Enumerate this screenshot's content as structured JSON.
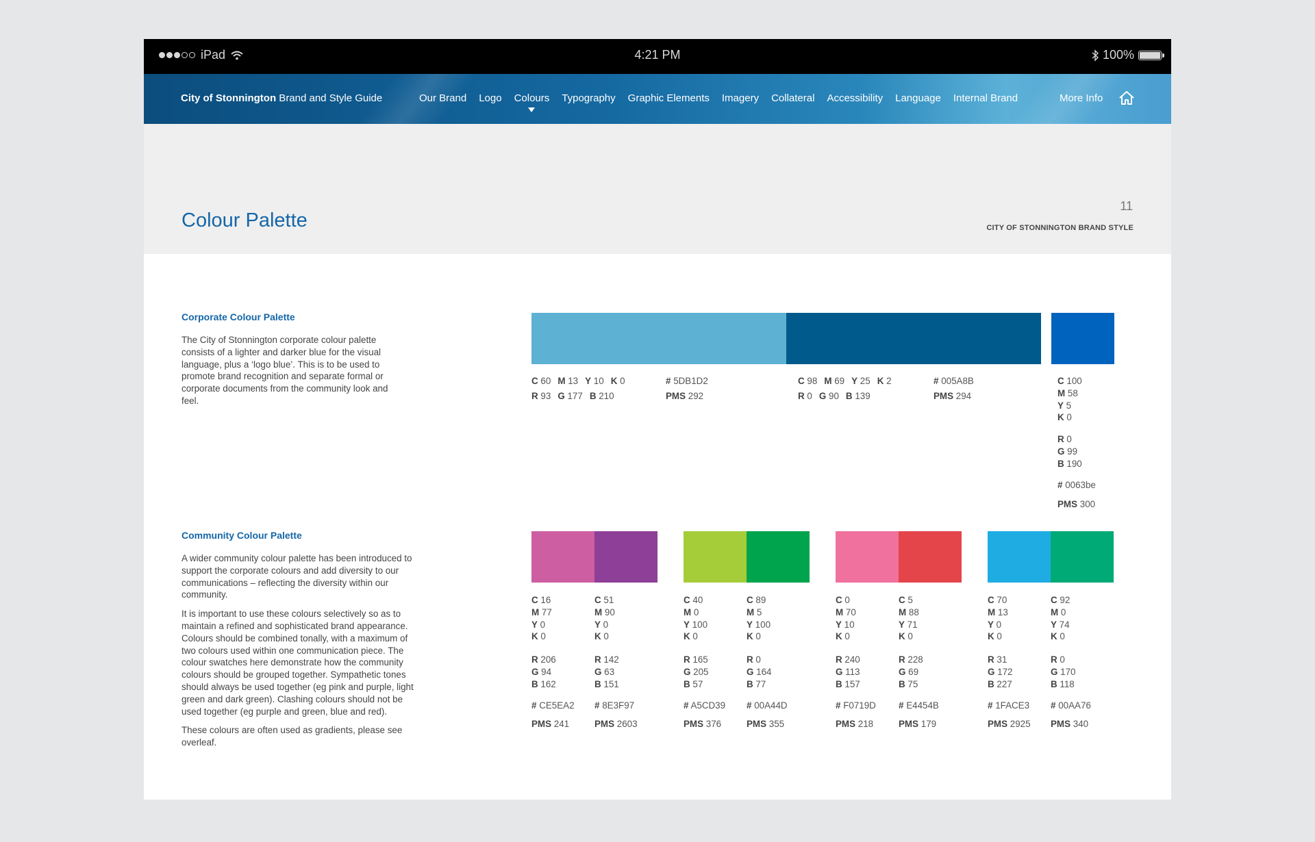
{
  "status_bar": {
    "carrier": "iPad",
    "time": "4:21 PM",
    "battery": "100%",
    "signal_bars": 3
  },
  "nav": {
    "brand_bold": "City of Stonnington",
    "brand_rest": " Brand and Style Guide",
    "items": [
      "Our Brand",
      "Logo",
      "Colours",
      "Typography",
      "Graphic Elements",
      "Imagery",
      "Collateral",
      "Accessibility",
      "Language",
      "Internal Brand"
    ],
    "active_item": "Colours",
    "more": "More Info",
    "home_icon": "home-icon"
  },
  "header": {
    "title": "Colour Palette",
    "page_number": "11",
    "subtitle": "CITY OF STONNINGTON BRAND STYLE"
  },
  "corporate": {
    "heading": "Corporate Colour Palette",
    "text": "The City of Stonnington corporate colour palette consists of a lighter and darker blue for the visual language, plus a ‘logo blue’. This is to be used to promote brand recognition and separate formal or corporate documents from the community look and feel.",
    "light_blue": {
      "color": "#5DB1D2",
      "c": "60",
      "m": "13",
      "y": "10",
      "k": "0",
      "r": "93",
      "g": "177",
      "b": "210",
      "hex": "5DB1D2",
      "pms": "292"
    },
    "dark_blue": {
      "color": "#005A8B",
      "c": "98",
      "m": "69",
      "y": "25",
      "k": "2",
      "r": "0",
      "g": "90",
      "b": "139",
      "hex": "005A8B",
      "pms": "294"
    },
    "logo_blue": {
      "color": "#0063BE",
      "c": "100",
      "m": "58",
      "y": "5",
      "k": "0",
      "r": "0",
      "g": "99",
      "b": "190",
      "hex": "0063be",
      "pms": "300"
    }
  },
  "community": {
    "heading": "Community Colour Palette",
    "paragraphs": [
      "A wider community colour palette has been introduced to support the corporate colours and add diversity to our communications – reflecting the diversity within our community.",
      "It is important to use these colours selectively so as to maintain a refined and sophisticated brand appearance. Colours should be combined tonally, with a maximum of two colours used within one communication piece. The colour swatches here demonstrate how the community colours should be grouped together. Sympathetic tones should always be used together (eg pink and purple, light green and dark green). Clashing colours should not be used together (eg purple and green, blue and red).",
      "These colours are often used as gradients, please see overleaf."
    ],
    "groups": [
      [
        {
          "color": "#CE5EA2",
          "c": "16",
          "m": "77",
          "y": "0",
          "k": "0",
          "r": "206",
          "g": "94",
          "b": "162",
          "hex": "CE5EA2",
          "pms": "241"
        },
        {
          "color": "#8E3F97",
          "c": "51",
          "m": "90",
          "y": "0",
          "k": "0",
          "r": "142",
          "g": "63",
          "b": "151",
          "hex": "8E3F97",
          "pms": "2603"
        }
      ],
      [
        {
          "color": "#A5CD39",
          "c": "40",
          "m": "0",
          "y": "100",
          "k": "0",
          "r": "165",
          "g": "205",
          "b": "57",
          "hex": "A5CD39",
          "pms": "376"
        },
        {
          "color": "#00A44D",
          "c": "89",
          "m": "5",
          "y": "100",
          "k": "0",
          "r": "0",
          "g": "164",
          "b": "77",
          "hex": "00A44D",
          "pms": "355"
        }
      ],
      [
        {
          "color": "#F0719D",
          "c": "0",
          "m": "70",
          "y": "10",
          "k": "0",
          "r": "240",
          "g": "113",
          "b": "157",
          "hex": "F0719D",
          "pms": "218"
        },
        {
          "color": "#E4454B",
          "c": "5",
          "m": "88",
          "y": "71",
          "k": "0",
          "r": "228",
          "g": "69",
          "b": "75",
          "hex": "E4454B",
          "pms": "179"
        }
      ],
      [
        {
          "color": "#1FACE3",
          "c": "70",
          "m": "13",
          "y": "0",
          "k": "0",
          "r": "31",
          "g": "172",
          "b": "227",
          "hex": "1FACE3",
          "pms": "2925"
        },
        {
          "color": "#00AA76",
          "c": "92",
          "m": "0",
          "y": "74",
          "k": "0",
          "r": "0",
          "g": "170",
          "b": "118",
          "hex": "00AA76",
          "pms": "340"
        }
      ]
    ]
  }
}
